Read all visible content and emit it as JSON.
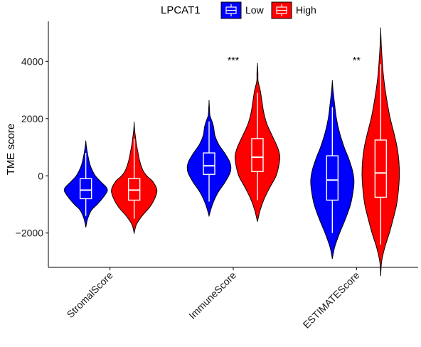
{
  "chart_data": {
    "type": "violin",
    "title": "",
    "xlabel": "",
    "ylabel": "TME score",
    "ylim": [
      -3200,
      5400
    ],
    "yticks": [
      -2000,
      0,
      2000,
      4000
    ],
    "ytick_labels": [
      "−2000",
      "0",
      "2000",
      "4000"
    ],
    "grid": false,
    "legend": {
      "title": "LPCAT1",
      "position": "top",
      "entries": [
        {
          "label": "Low",
          "color": "#0000ff"
        },
        {
          "label": "High",
          "color": "#ff0000"
        }
      ]
    },
    "categories": [
      "StromalScore",
      "ImmuneScore",
      "ESTIMATEScore"
    ],
    "significance": [
      "",
      "***",
      "**"
    ],
    "series": [
      {
        "name": "Low",
        "color": "#0000ff",
        "groups": [
          {
            "category": "StromalScore",
            "min": -1800,
            "max": 1200,
            "box": {
              "whisker_low": -1400,
              "q1": -800,
              "median": -500,
              "q3": -100,
              "whisker_high": 800
            },
            "density": [
              [
                -1800,
                0
              ],
              [
                -1500,
                0.08
              ],
              [
                -1200,
                0.25
              ],
              [
                -1000,
                0.5
              ],
              [
                -800,
                0.72
              ],
              [
                -600,
                0.9
              ],
              [
                -500,
                0.95
              ],
              [
                -400,
                0.9
              ],
              [
                -200,
                0.65
              ],
              [
                0,
                0.42
              ],
              [
                200,
                0.28
              ],
              [
                400,
                0.18
              ],
              [
                600,
                0.12
              ],
              [
                800,
                0.07
              ],
              [
                1000,
                0.03
              ],
              [
                1200,
                0
              ]
            ]
          },
          {
            "category": "ImmuneScore",
            "min": -1400,
            "max": 2600,
            "box": {
              "whisker_low": -900,
              "q1": 50,
              "median": 350,
              "q3": 800,
              "whisker_high": 1900
            },
            "density": [
              [
                -1400,
                0
              ],
              [
                -1000,
                0.15
              ],
              [
                -600,
                0.38
              ],
              [
                -200,
                0.72
              ],
              [
                100,
                0.92
              ],
              [
                300,
                0.96
              ],
              [
                500,
                0.9
              ],
              [
                800,
                0.68
              ],
              [
                1100,
                0.42
              ],
              [
                1400,
                0.26
              ],
              [
                1700,
                0.2
              ],
              [
                1900,
                0.13
              ],
              [
                2100,
                0.04
              ],
              [
                2300,
                0.02
              ],
              [
                2600,
                0
              ]
            ]
          },
          {
            "category": "ESTIMATEScore",
            "min": -2900,
            "max": 3300,
            "box": {
              "whisker_low": -2000,
              "q1": -850,
              "median": -150,
              "q3": 700,
              "whisker_high": 2400
            },
            "density": [
              [
                -2900,
                0
              ],
              [
                -2500,
                0.1
              ],
              [
                -2000,
                0.32
              ],
              [
                -1500,
                0.58
              ],
              [
                -1000,
                0.8
              ],
              [
                -500,
                0.92
              ],
              [
                -150,
                0.95
              ],
              [
                200,
                0.88
              ],
              [
                600,
                0.72
              ],
              [
                1000,
                0.52
              ],
              [
                1500,
                0.32
              ],
              [
                2000,
                0.18
              ],
              [
                2500,
                0.1
              ],
              [
                3000,
                0.03
              ],
              [
                3300,
                0
              ]
            ]
          }
        ]
      },
      {
        "name": "High",
        "color": "#ff0000",
        "groups": [
          {
            "category": "StromalScore",
            "min": -2000,
            "max": 1850,
            "box": {
              "whisker_low": -1500,
              "q1": -850,
              "median": -500,
              "q3": -100,
              "whisker_high": 1300
            },
            "density": [
              [
                -2000,
                0
              ],
              [
                -1700,
                0.1
              ],
              [
                -1400,
                0.35
              ],
              [
                -1100,
                0.68
              ],
              [
                -800,
                0.9
              ],
              [
                -500,
                1.0
              ],
              [
                -200,
                0.82
              ],
              [
                0,
                0.55
              ],
              [
                200,
                0.38
              ],
              [
                500,
                0.25
              ],
              [
                800,
                0.17
              ],
              [
                1100,
                0.1
              ],
              [
                1400,
                0.05
              ],
              [
                1600,
                0.02
              ],
              [
                1850,
                0
              ]
            ]
          },
          {
            "category": "ImmuneScore",
            "min": -1600,
            "max": 3900,
            "box": {
              "whisker_low": -850,
              "q1": 150,
              "median": 650,
              "q3": 1300,
              "whisker_high": 2900
            },
            "density": [
              [
                -1600,
                0
              ],
              [
                -1200,
                0.12
              ],
              [
                -800,
                0.3
              ],
              [
                -400,
                0.55
              ],
              [
                0,
                0.82
              ],
              [
                400,
                0.95
              ],
              [
                700,
                0.98
              ],
              [
                1000,
                0.88
              ],
              [
                1400,
                0.65
              ],
              [
                1800,
                0.42
              ],
              [
                2200,
                0.28
              ],
              [
                2600,
                0.2
              ],
              [
                3000,
                0.12
              ],
              [
                3300,
                0.03
              ],
              [
                3600,
                0.02
              ],
              [
                3900,
                0
              ]
            ]
          },
          {
            "category": "ESTIMATEScore",
            "min": -3500,
            "max": 5100,
            "box": {
              "whisker_low": -2400,
              "q1": -750,
              "median": 100,
              "q3": 1250,
              "whisker_high": 3900
            },
            "density": [
              [
                -3500,
                0
              ],
              [
                -3000,
                0.04
              ],
              [
                -2500,
                0.18
              ],
              [
                -2000,
                0.38
              ],
              [
                -1500,
                0.55
              ],
              [
                -1000,
                0.7
              ],
              [
                -500,
                0.78
              ],
              [
                0,
                0.82
              ],
              [
                500,
                0.8
              ],
              [
                1000,
                0.72
              ],
              [
                1500,
                0.58
              ],
              [
                2000,
                0.42
              ],
              [
                2500,
                0.3
              ],
              [
                3000,
                0.2
              ],
              [
                3500,
                0.12
              ],
              [
                4000,
                0.07
              ],
              [
                4500,
                0.03
              ],
              [
                5100,
                0
              ]
            ]
          }
        ]
      }
    ]
  }
}
